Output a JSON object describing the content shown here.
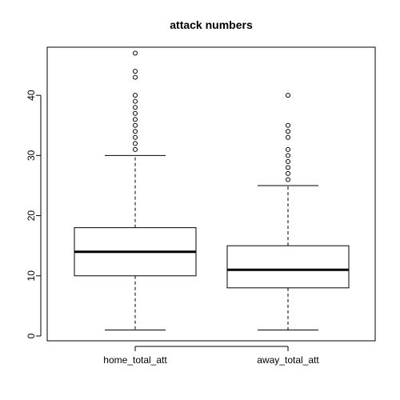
{
  "chart_data": {
    "type": "box",
    "title": "attack numbers",
    "xlabel": "",
    "ylabel": "",
    "categories": [
      "home_total_att",
      "away_total_att"
    ],
    "ylim": [
      -0.8,
      48
    ],
    "yticks": [
      0,
      10,
      20,
      30,
      40
    ],
    "grid": false,
    "legend": "none",
    "colors": {
      "line": "#000000",
      "background": "#ffffff"
    },
    "series": [
      {
        "category": "home_total_att",
        "min": 1,
        "q1": 10,
        "median": 14,
        "q3": 18,
        "max": 30,
        "outliers": [
          31,
          32,
          33,
          34,
          35,
          36,
          37,
          38,
          39,
          40,
          43,
          44,
          47
        ]
      },
      {
        "category": "away_total_att",
        "min": 1,
        "q1": 8,
        "median": 11,
        "q3": 15,
        "max": 25,
        "outliers": [
          26,
          27,
          28,
          29,
          30,
          31,
          33,
          34,
          35,
          40
        ]
      }
    ]
  }
}
